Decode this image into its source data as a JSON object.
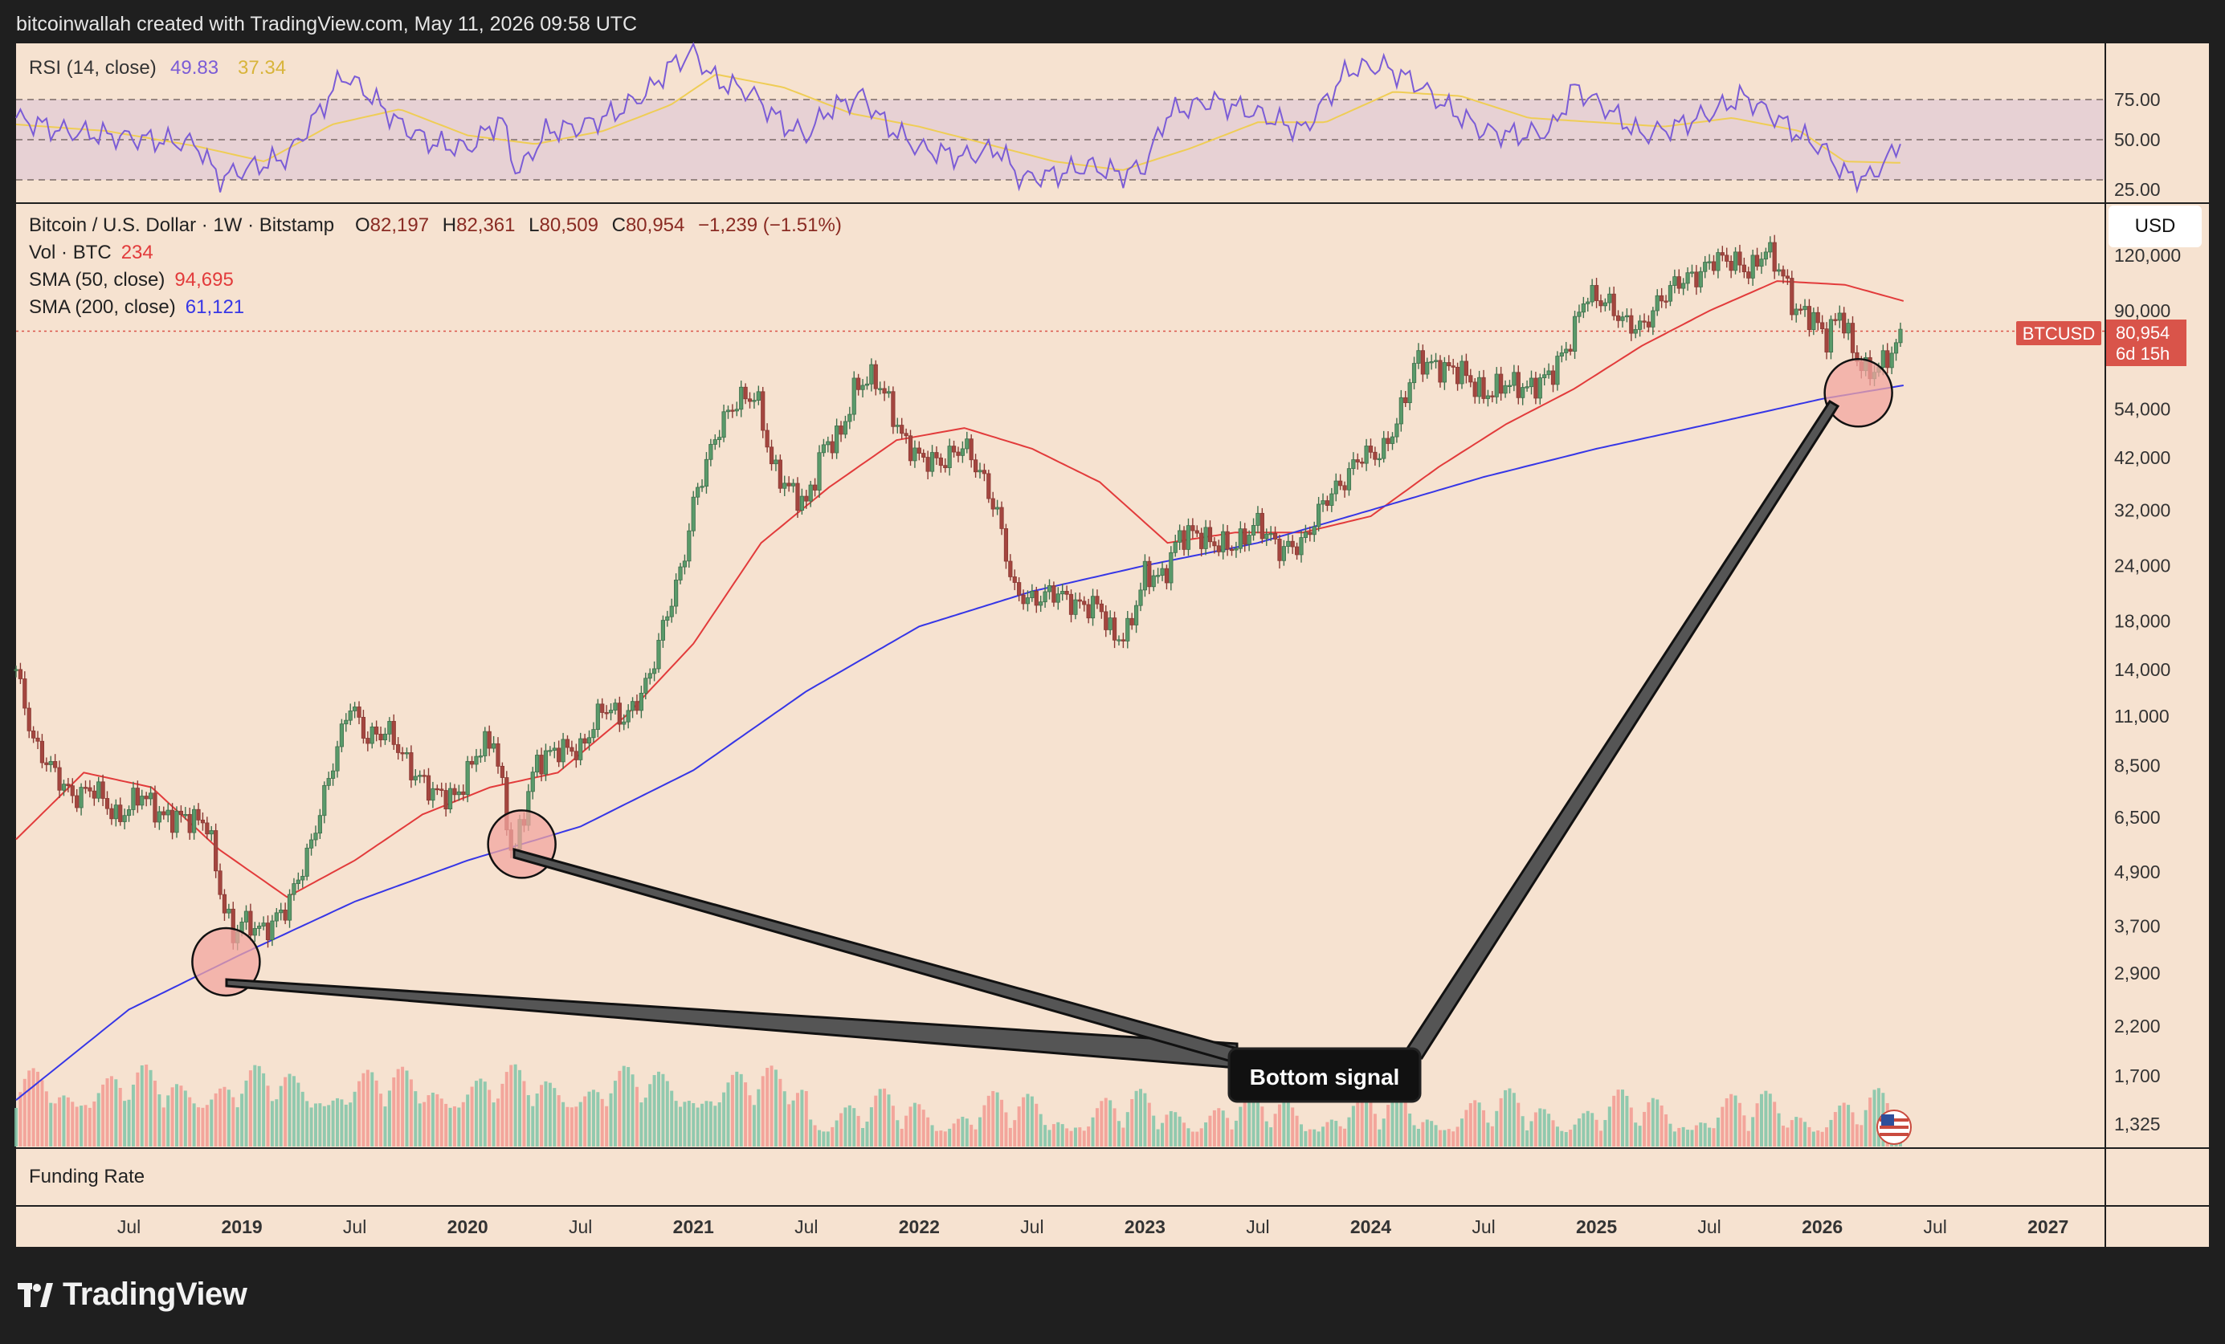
{
  "header": {
    "credit": "bitcoinwallah created with TradingView.com, May 11, 2026 09:58 UTC"
  },
  "branding": {
    "logo_text": "TradingView",
    "currency_button": "USD"
  },
  "colors": {
    "background": "#f6e2d0",
    "frame": "#1f1f1f",
    "candle_up": "#3f6f4c",
    "candle_down": "#8a3a34",
    "sma50": "#e23b3b",
    "sma200": "#3636e6",
    "rsi": "#7b5cd6",
    "rsi_ma": "#efcd55",
    "price_label": "#d9544a",
    "volume_up": "#7fc4a8",
    "volume_down": "#f29a92"
  },
  "rsi_panel": {
    "title": "RSI (14, close)",
    "rsi_value": "49.83",
    "ma_value": "37.34",
    "levels": [
      "75.00",
      "50.00",
      "25.00"
    ]
  },
  "price_panel": {
    "symbol_line": "Bitcoin / U.S. Dollar · 1W · Bitstamp",
    "open_label": "O",
    "open": "82,197",
    "high_label": "H",
    "high": "82,361",
    "low_label": "L",
    "low": "80,509",
    "close_label": "C",
    "close": "80,954",
    "change": "−1,239 (−1.51%)",
    "vol_label": "Vol · BTC",
    "vol_value": "234",
    "sma50_label": "SMA (50, close)",
    "sma50_value": "94,695",
    "sma200_label": "SMA (200, close)",
    "sma200_value": "61,121",
    "ticker_tag": "BTCUSD",
    "last_price": "80,954",
    "countdown": "6d 15h"
  },
  "funding_panel": {
    "title": "Funding Rate"
  },
  "annotation": {
    "label": "Bottom signal"
  },
  "chart_data": {
    "type": "line",
    "title": "Bitcoin / U.S. Dollar · 1W · Bitstamp",
    "y_scale": "log",
    "y_ticks": [
      "120,000",
      "90,000",
      "54,000",
      "42,000",
      "32,000",
      "24,000",
      "18,000",
      "14,000",
      "11,000",
      "8,500",
      "6,500",
      "4,900",
      "3,700",
      "2,900",
      "2,200",
      "1,700",
      "1,325"
    ],
    "y_tick_values": [
      120000,
      90000,
      54000,
      42000,
      32000,
      24000,
      18000,
      14000,
      11000,
      8500,
      6500,
      4900,
      3700,
      2900,
      2200,
      1700,
      1325
    ],
    "x_ticks": [
      "Jul",
      "2019",
      "Jul",
      "2020",
      "Jul",
      "2021",
      "Jul",
      "2022",
      "Jul",
      "2023",
      "Jul",
      "2024",
      "Jul",
      "2025",
      "Jul",
      "2026",
      "Jul",
      "2027"
    ],
    "x_tick_dates": [
      2018.5,
      2019,
      2019.5,
      2020,
      2020.5,
      2021,
      2021.5,
      2022,
      2022.5,
      2023,
      2023.5,
      2024,
      2024.5,
      2025,
      2025.5,
      2026,
      2026.5,
      2027
    ],
    "x_range": [
      2018.0,
      2027.25
    ],
    "series": [
      {
        "name": "BTCUSD",
        "x": [
          2018.0,
          2018.08,
          2018.15,
          2018.25,
          2018.35,
          2018.45,
          2018.55,
          2018.65,
          2018.75,
          2018.85,
          2018.9,
          2018.96,
          2019.0,
          2019.1,
          2019.2,
          2019.3,
          2019.4,
          2019.48,
          2019.55,
          2019.65,
          2019.75,
          2019.85,
          2019.95,
          2020.05,
          2020.12,
          2020.2,
          2020.3,
          2020.4,
          2020.5,
          2020.6,
          2020.7,
          2020.8,
          2020.88,
          2020.95,
          2021.0,
          2021.05,
          2021.12,
          2021.2,
          2021.28,
          2021.35,
          2021.42,
          2021.5,
          2021.58,
          2021.65,
          2021.72,
          2021.8,
          2021.86,
          2021.92,
          2022.0,
          2022.1,
          2022.2,
          2022.28,
          2022.35,
          2022.42,
          2022.5,
          2022.6,
          2022.7,
          2022.8,
          2022.86,
          2022.92,
          2023.0,
          2023.08,
          2023.15,
          2023.22,
          2023.3,
          2023.4,
          2023.5,
          2023.6,
          2023.7,
          2023.8,
          2023.88,
          2023.95,
          2024.05,
          2024.12,
          2024.2,
          2024.3,
          2024.4,
          2024.5,
          2024.6,
          2024.7,
          2024.8,
          2024.88,
          2024.95,
          2025.05,
          2025.12,
          2025.2,
          2025.28,
          2025.36,
          2025.45,
          2025.52,
          2025.6,
          2025.68,
          2025.75,
          2025.82,
          2025.88,
          2025.95,
          2026.02,
          2026.08,
          2026.14,
          2026.2,
          2026.26,
          2026.32,
          2026.36
        ],
        "y": [
          14000,
          9500,
          8500,
          7200,
          7600,
          6400,
          7400,
          6500,
          6500,
          6300,
          4500,
          3500,
          3800,
          3600,
          4100,
          5500,
          8500,
          11800,
          9800,
          10200,
          8300,
          7400,
          7200,
          9300,
          9700,
          5200,
          8600,
          9300,
          9200,
          11600,
          10800,
          13200,
          18500,
          23800,
          33000,
          40000,
          50000,
          57000,
          58000,
          40000,
          36000,
          33000,
          45000,
          47000,
          61000,
          64000,
          57000,
          47000,
          42000,
          41000,
          45000,
          38000,
          31000,
          21000,
          20000,
          21000,
          19500,
          19500,
          16500,
          16800,
          23000,
          22500,
          28000,
          28500,
          27000,
          26500,
          30000,
          26000,
          27000,
          34000,
          37000,
          42500,
          43000,
          51000,
          70000,
          67000,
          66000,
          58000,
          62000,
          60000,
          65000,
          76000,
          98000,
          94000,
          85000,
          82000,
          95000,
          105000,
          108000,
          118000,
          117000,
          110000,
          124000,
          110000,
          90000,
          88000,
          78000,
          90000,
          72000,
          65000,
          68000,
          74000,
          80954
        ]
      },
      {
        "name": "SMA (50, close)",
        "x": [
          2018.0,
          2018.3,
          2018.6,
          2018.9,
          2019.2,
          2019.5,
          2019.8,
          2020.1,
          2020.4,
          2020.7,
          2021.0,
          2021.3,
          2021.6,
          2021.9,
          2022.2,
          2022.5,
          2022.8,
          2023.1,
          2023.4,
          2023.7,
          2024.0,
          2024.3,
          2024.6,
          2024.9,
          2025.2,
          2025.5,
          2025.8,
          2026.1,
          2026.36
        ],
        "y": [
          5800,
          8200,
          7600,
          5500,
          4300,
          5200,
          6600,
          7600,
          8200,
          11000,
          16000,
          27000,
          36000,
          46000,
          49000,
          44000,
          37000,
          27000,
          28500,
          28500,
          31000,
          40000,
          50000,
          60000,
          75000,
          90000,
          105000,
          103000,
          94695
        ]
      },
      {
        "name": "SMA (200, close)",
        "x": [
          2018.0,
          2018.5,
          2019.0,
          2019.5,
          2020.0,
          2020.5,
          2021.0,
          2021.5,
          2022.0,
          2022.5,
          2023.0,
          2023.5,
          2024.0,
          2024.5,
          2025.0,
          2025.5,
          2026.0,
          2026.36
        ],
        "y": [
          1500,
          2400,
          3200,
          4200,
          5200,
          6200,
          8300,
          12500,
          17500,
          21000,
          24000,
          27000,
          32000,
          38000,
          44000,
          50000,
          57000,
          61121
        ]
      }
    ],
    "rsi_series": {
      "name": "RSI (14, close)",
      "ylim": [
        20,
        90
      ],
      "x": [
        2018.0,
        2018.2,
        2018.4,
        2018.6,
        2018.8,
        2018.9,
        2019.0,
        2019.2,
        2019.35,
        2019.45,
        2019.55,
        2019.7,
        2019.85,
        2020.0,
        2020.15,
        2020.22,
        2020.35,
        2020.5,
        2020.65,
        2020.8,
        2020.9,
        2021.0,
        2021.1,
        2021.25,
        2021.4,
        2021.5,
        2021.6,
        2021.75,
        2021.85,
        2022.0,
        2022.2,
        2022.35,
        2022.45,
        2022.6,
        2022.75,
        2022.9,
        2023.0,
        2023.1,
        2023.3,
        2023.5,
        2023.7,
        2023.8,
        2023.9,
        2024.05,
        2024.2,
        2024.35,
        2024.5,
        2024.65,
        2024.8,
        2024.9,
        2025.05,
        2025.2,
        2025.35,
        2025.5,
        2025.65,
        2025.8,
        2025.9,
        2026.0,
        2026.1,
        2026.2,
        2026.3,
        2026.36
      ],
      "y": [
        58,
        52,
        50,
        48,
        46,
        30,
        34,
        40,
        62,
        78,
        70,
        55,
        46,
        44,
        58,
        32,
        52,
        54,
        60,
        70,
        82,
        88,
        75,
        70,
        55,
        50,
        62,
        68,
        55,
        44,
        40,
        44,
        30,
        32,
        36,
        32,
        36,
        60,
        66,
        60,
        52,
        66,
        80,
        82,
        74,
        62,
        52,
        50,
        52,
        72,
        62,
        50,
        54,
        60,
        68,
        58,
        50,
        44,
        32,
        30,
        40,
        49.83
      ]
    },
    "rsi_ma_series": {
      "name": "RSI MA",
      "x": [
        2018.0,
        2018.4,
        2018.8,
        2019.1,
        2019.4,
        2019.7,
        2020.0,
        2020.3,
        2020.6,
        2020.9,
        2021.1,
        2021.4,
        2021.7,
        2022.0,
        2022.3,
        2022.6,
        2022.9,
        2023.2,
        2023.5,
        2023.8,
        2024.1,
        2024.4,
        2024.7,
        2025.0,
        2025.3,
        2025.6,
        2025.9,
        2026.1,
        2026.36
      ],
      "y": [
        55,
        52,
        45,
        38,
        55,
        62,
        50,
        46,
        52,
        64,
        78,
        72,
        60,
        54,
        46,
        38,
        34,
        44,
        56,
        56,
        70,
        68,
        58,
        56,
        54,
        58,
        52,
        38,
        37.34
      ]
    },
    "annotations": [
      {
        "text": "Bottom signal",
        "marker_dates": [
          2018.93,
          2020.24,
          2026.16
        ]
      }
    ]
  }
}
